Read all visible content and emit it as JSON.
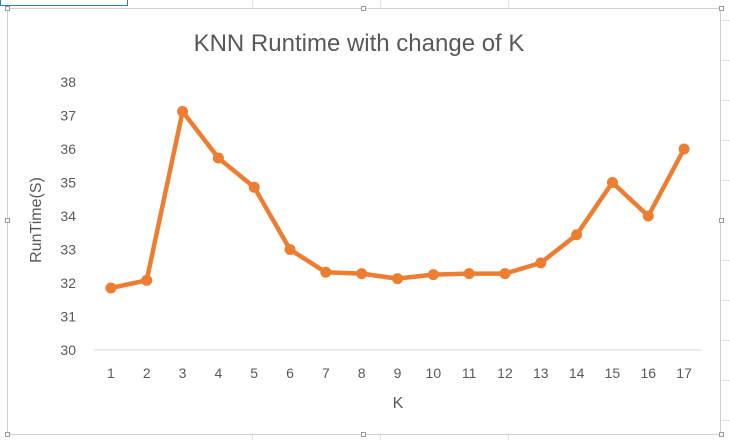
{
  "chart_data": {
    "type": "line",
    "title": "KNN Runtime with change of K",
    "xlabel": "K",
    "ylabel": "RunTime(S)",
    "x": [
      1,
      2,
      3,
      4,
      5,
      6,
      7,
      8,
      9,
      10,
      11,
      12,
      13,
      14,
      15,
      16,
      17
    ],
    "series": [
      {
        "values": [
          31.85,
          32.08,
          37.12,
          35.73,
          34.86,
          33.0,
          32.32,
          32.28,
          32.13,
          32.25,
          32.28,
          32.28,
          32.6,
          33.44,
          35.0,
          34.0,
          36.0
        ],
        "color": "#ed7d31"
      }
    ],
    "ylim": [
      30,
      38
    ],
    "yticks": [
      30,
      31,
      32,
      33,
      34,
      35,
      36,
      37,
      38
    ],
    "grid": false,
    "legend": "none"
  }
}
